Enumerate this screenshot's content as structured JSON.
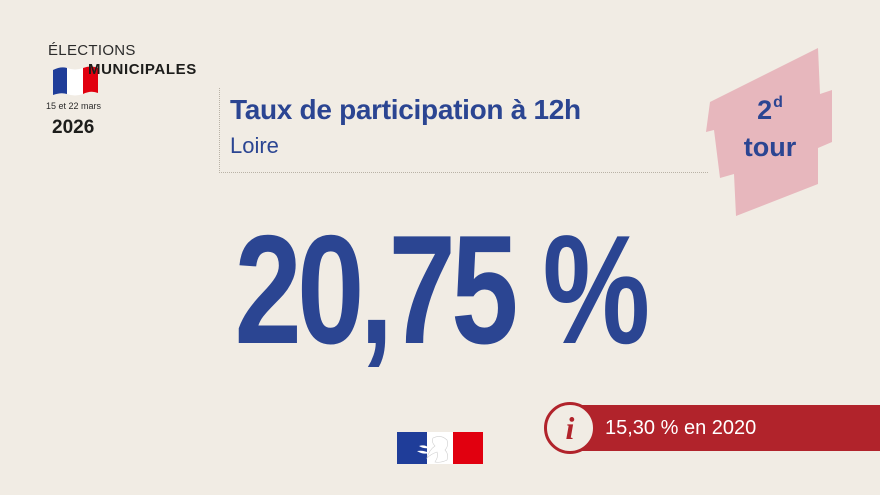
{
  "logo": {
    "elections": "ÉLECTIONS",
    "municipales": "MUNICIPALES",
    "dates": "15 et 22 mars",
    "year": "2026",
    "flag_colors": [
      "#1f3d99",
      "#ffffff",
      "#e1000f"
    ]
  },
  "header": {
    "title": "Taux de participation à 12h",
    "subtitle": "Loire"
  },
  "badge": {
    "number": "2",
    "superscript": "d",
    "label": "tour",
    "color": "#e7b7bd"
  },
  "main": {
    "value": "20,75 %"
  },
  "info": {
    "icon": "info-icon",
    "text": "15,30 % en 2020"
  },
  "footer": {
    "emblem": "marianne-logo"
  },
  "colors": {
    "background": "#f1ece4",
    "primary_blue": "#2b4592",
    "accent_red": "#b1232b"
  }
}
